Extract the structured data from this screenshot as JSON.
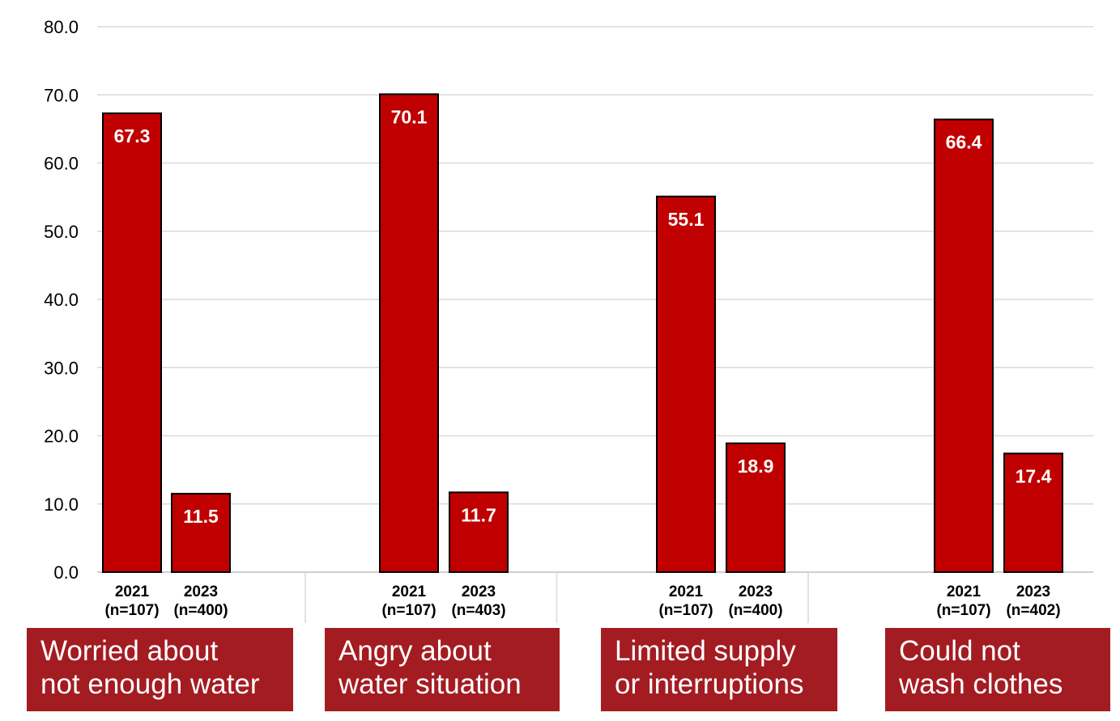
{
  "chart_data": {
    "type": "bar",
    "ylim": [
      0,
      80
    ],
    "yticks": [
      "0.0",
      "10.0",
      "20.0",
      "30.0",
      "40.0",
      "50.0",
      "60.0",
      "70.0",
      "80.0"
    ],
    "grid": true,
    "bar_color": "#c00000",
    "label_box_color": "#a31c22",
    "groups": [
      {
        "label": "Worried about\nnot enough water",
        "bars": [
          {
            "year": "2021",
            "n": "(n=107)",
            "value": 67.3,
            "text": "67.3"
          },
          {
            "year": "2023",
            "n": "(n=400)",
            "value": 11.5,
            "text": "11.5"
          }
        ]
      },
      {
        "label": "Angry about\nwater situation",
        "bars": [
          {
            "year": "2021",
            "n": "(n=107)",
            "value": 70.1,
            "text": "70.1"
          },
          {
            "year": "2023",
            "n": "(n=403)",
            "value": 11.7,
            "text": "11.7"
          }
        ]
      },
      {
        "label": "Limited  supply\nor interruptions",
        "bars": [
          {
            "year": "2021",
            "n": "(n=107)",
            "value": 55.1,
            "text": "55.1"
          },
          {
            "year": "2023",
            "n": "(n=400)",
            "value": 18.9,
            "text": "18.9"
          }
        ]
      },
      {
        "label": "Could not\nwash clothes",
        "bars": [
          {
            "year": "2021",
            "n": "(n=107)",
            "value": 66.4,
            "text": "66.4"
          },
          {
            "year": "2023",
            "n": "(n=402)",
            "value": 17.4,
            "text": "17.4"
          }
        ]
      }
    ]
  }
}
